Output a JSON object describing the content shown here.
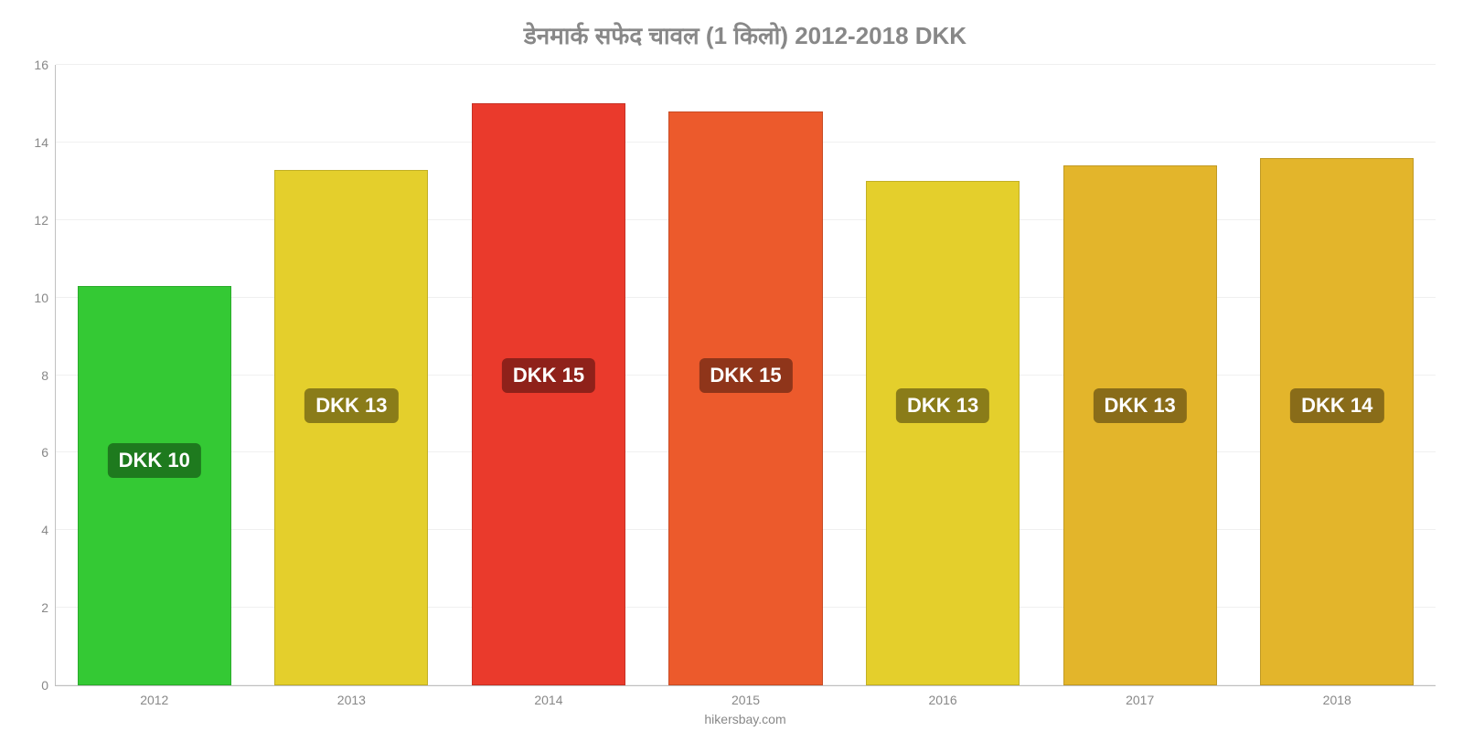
{
  "chart": {
    "type": "bar",
    "title": "डेनमार्क सफेद चावल (1 किलो) 2012-2018 DKK",
    "title_fontsize": 26,
    "title_color": "#888888",
    "source": "hikersbay.com",
    "source_fontsize": 14,
    "background_color": "#ffffff",
    "grid_color": "#f0f0f0",
    "axis_color": "#c0c0c0",
    "tick_label_color": "#888888",
    "tick_fontsize": 14,
    "ylim": [
      0,
      16
    ],
    "ytick_step": 2,
    "bar_width": 0.78,
    "value_tag_fontsize": 22,
    "value_tag_text_color": "#ffffff",
    "value_tag_y": 7.2,
    "yticks": [
      {
        "v": 0,
        "label": "0"
      },
      {
        "v": 2,
        "label": "2"
      },
      {
        "v": 4,
        "label": "4"
      },
      {
        "v": 6,
        "label": "6"
      },
      {
        "v": 8,
        "label": "8"
      },
      {
        "v": 10,
        "label": "10"
      },
      {
        "v": 12,
        "label": "12"
      },
      {
        "v": 14,
        "label": "14"
      },
      {
        "v": 16,
        "label": "16"
      }
    ],
    "bars": [
      {
        "category": "2012",
        "value": 10.3,
        "value_label": "DKK 10",
        "value_tag_y": 5.8,
        "bar_color": "#34c934",
        "tag_bg": "#1e7a1e"
      },
      {
        "category": "2013",
        "value": 13.3,
        "value_label": "DKK 13",
        "value_tag_y": 7.2,
        "bar_color": "#e4cf2c",
        "tag_bg": "#8a7c19"
      },
      {
        "category": "2014",
        "value": 15.0,
        "value_label": "DKK 15",
        "value_tag_y": 8.0,
        "bar_color": "#ea3a2c",
        "tag_bg": "#8f211a"
      },
      {
        "category": "2015",
        "value": 14.8,
        "value_label": "DKK 15",
        "value_tag_y": 8.0,
        "bar_color": "#ec5a2c",
        "tag_bg": "#8f351a"
      },
      {
        "category": "2016",
        "value": 13.0,
        "value_label": "DKK 13",
        "value_tag_y": 7.2,
        "bar_color": "#e4cf2c",
        "tag_bg": "#8a7c19"
      },
      {
        "category": "2017",
        "value": 13.4,
        "value_label": "DKK 13",
        "value_tag_y": 7.2,
        "bar_color": "#e3b52b",
        "tag_bg": "#896c19"
      },
      {
        "category": "2018",
        "value": 13.6,
        "value_label": "DKK 14",
        "value_tag_y": 7.2,
        "bar_color": "#e3b52b",
        "tag_bg": "#896c19"
      }
    ]
  }
}
